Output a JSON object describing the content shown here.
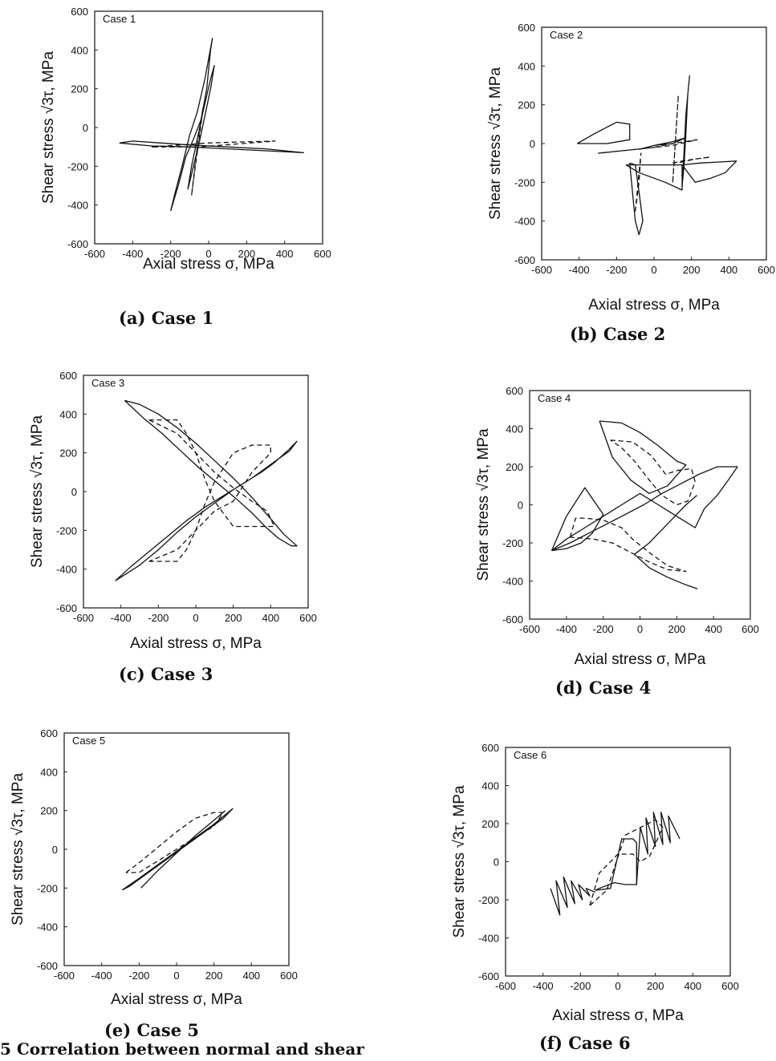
{
  "figure_caption": "5 Correlation between normal and shear",
  "chart_data": [
    {
      "type": "line",
      "panel_label": "(a) Case 1",
      "case_label": "Case 1",
      "xlabel": "Axial stress  σ,  MPa",
      "ylabel": "Shear stress  √3τ,  MPa",
      "xlim": [
        -600,
        600
      ],
      "ylim": [
        -600,
        600
      ],
      "xticks": [
        "-600",
        "-400",
        "-200",
        "0",
        "200",
        "400",
        "600"
      ],
      "yticks": [
        "-600",
        "-400",
        "-200",
        "0",
        "200",
        "400",
        "600"
      ],
      "series": [
        {
          "style": "solid",
          "x": [
            -200,
            -160,
            -120,
            -80,
            -40,
            -10,
            10,
            20,
            -20,
            -60,
            -100,
            -140,
            -180,
            -200
          ],
          "y": [
            -430,
            -300,
            -150,
            -60,
            40,
            200,
            400,
            460,
            250,
            80,
            -40,
            -200,
            -350,
            -430
          ]
        },
        {
          "style": "solid",
          "x": [
            -110,
            -80,
            -50,
            -20,
            10,
            30,
            10,
            -30,
            -60,
            -90,
            -110
          ],
          "y": [
            -320,
            -200,
            -80,
            60,
            200,
            320,
            250,
            80,
            -60,
            -200,
            -320
          ]
        },
        {
          "style": "solid",
          "x": [
            -470,
            -400,
            -250,
            -100,
            100,
            300,
            500,
            300,
            100,
            -100,
            -300,
            -470
          ],
          "y": [
            -80,
            -70,
            -80,
            -90,
            -100,
            -110,
            -130,
            -120,
            -110,
            -100,
            -95,
            -80
          ]
        },
        {
          "style": "dashed",
          "x": [
            -90,
            -70,
            -50,
            -30,
            -60,
            -90
          ],
          "y": [
            -350,
            -200,
            -60,
            100,
            -100,
            -350
          ]
        },
        {
          "style": "dashed",
          "x": [
            -300,
            -150,
            0,
            150,
            350,
            150,
            -50,
            -300
          ],
          "y": [
            -100,
            -90,
            -80,
            -75,
            -70,
            -85,
            -100,
            -100
          ]
        }
      ]
    },
    {
      "type": "line",
      "panel_label": "(b) Case 2",
      "case_label": "Case 2",
      "xlabel": "Axial stress  σ,  MPa",
      "ylabel": "Shear stress  √3τ,  MPa",
      "xlim": [
        -600,
        600
      ],
      "ylim": [
        -600,
        600
      ],
      "xticks": [
        "-600",
        "-400",
        "-200",
        "0",
        "200",
        "400",
        "600"
      ],
      "yticks": [
        "-600",
        "-400",
        "-200",
        "0",
        "200",
        "400",
        "600"
      ],
      "series": [
        {
          "style": "solid",
          "x": [
            -410,
            -320,
            -200,
            -130,
            -130,
            -250,
            -410
          ],
          "y": [
            0,
            50,
            110,
            100,
            20,
            0,
            0
          ]
        },
        {
          "style": "solid",
          "x": [
            -130,
            -120,
            -110,
            -100,
            -80,
            -60,
            -80,
            -100,
            -130
          ],
          "y": [
            -100,
            -200,
            -300,
            -400,
            -470,
            -400,
            -250,
            -110,
            -100
          ]
        },
        {
          "style": "solid",
          "x": [
            -150,
            -20,
            150,
            150,
            60,
            -80,
            -150
          ],
          "y": [
            -110,
            -110,
            -110,
            -240,
            -200,
            -150,
            -110
          ]
        },
        {
          "style": "solid",
          "x": [
            150,
            160,
            170,
            190,
            180,
            170,
            160,
            150
          ],
          "y": [
            -220,
            -50,
            150,
            350,
            250,
            50,
            -120,
            -220
          ]
        },
        {
          "style": "solid",
          "x": [
            150,
            250,
            350,
            440,
            380,
            300,
            220,
            150
          ],
          "y": [
            -110,
            -100,
            -95,
            -90,
            -150,
            -180,
            -200,
            -110
          ]
        },
        {
          "style": "solid",
          "x": [
            -80,
            0,
            100,
            170,
            100,
            0,
            -80
          ],
          "y": [
            -30,
            -10,
            10,
            30,
            0,
            -10,
            -30
          ]
        },
        {
          "style": "dashed",
          "x": [
            -300,
            -200,
            -100,
            0,
            100,
            230,
            100,
            0,
            -100,
            -300
          ],
          "y": [
            -50,
            -40,
            -30,
            -20,
            0,
            20,
            -10,
            -20,
            -30,
            -50
          ]
        },
        {
          "style": "dashed",
          "x": [
            100,
            150,
            220,
            300,
            220,
            150,
            100
          ],
          "y": [
            -100,
            -90,
            -80,
            -70,
            -80,
            -95,
            -100
          ]
        },
        {
          "style": "dashed",
          "x": [
            100,
            110,
            120,
            130,
            120,
            110,
            100
          ],
          "y": [
            -200,
            -50,
            100,
            250,
            100,
            -50,
            -200
          ]
        },
        {
          "style": "dashed",
          "x": [
            -100,
            -90,
            -80,
            -70,
            -80,
            -100
          ],
          "y": [
            -350,
            -250,
            -150,
            -50,
            -200,
            -350
          ]
        }
      ]
    },
    {
      "type": "line",
      "panel_label": "(c) Case 3",
      "case_label": "Case 3",
      "xlabel": "Axial stress  σ,  MPa",
      "ylabel": "Shear stress  √3τ,  MPa",
      "xlim": [
        -600,
        600
      ],
      "ylim": [
        -600,
        600
      ],
      "xticks": [
        "-600",
        "-400",
        "-200",
        "0",
        "200",
        "400",
        "600"
      ],
      "yticks": [
        "-600",
        "-400",
        "-200",
        "0",
        "200",
        "400",
        "600"
      ],
      "series": [
        {
          "style": "solid",
          "x": [
            -430,
            -300,
            -200,
            -100,
            0,
            100,
            200,
            300,
            400,
            500,
            540,
            500,
            420,
            350,
            250,
            150,
            50,
            -50,
            -150,
            -250,
            -350,
            -430
          ],
          "y": [
            -460,
            -380,
            -300,
            -210,
            -130,
            -60,
            10,
            70,
            140,
            210,
            260,
            220,
            150,
            100,
            40,
            -20,
            -80,
            -150,
            -230,
            -310,
            -390,
            -460
          ]
        },
        {
          "style": "solid",
          "x": [
            -380,
            -300,
            -200,
            -100,
            0,
            100,
            200,
            300,
            400,
            470,
            540,
            510,
            440,
            370,
            300,
            220,
            120,
            20,
            -80,
            -180,
            -280,
            -380
          ],
          "y": [
            470,
            450,
            400,
            330,
            250,
            160,
            70,
            -30,
            -140,
            -220,
            -280,
            -280,
            -240,
            -180,
            -110,
            -40,
            40,
            120,
            210,
            300,
            380,
            470
          ]
        },
        {
          "style": "dashed",
          "x": [
            -250,
            -100,
            -50,
            0,
            50,
            100,
            200,
            300,
            400,
            400,
            300,
            200,
            100,
            0,
            -100,
            -250
          ],
          "y": [
            -360,
            -360,
            -300,
            -200,
            -60,
            50,
            200,
            240,
            240,
            200,
            100,
            -50,
            -100,
            -200,
            -300,
            -360
          ]
        },
        {
          "style": "dashed",
          "x": [
            -250,
            -100,
            -50,
            0,
            50,
            100,
            200,
            300,
            420,
            380,
            300,
            200,
            100,
            0,
            -100,
            -250
          ],
          "y": [
            370,
            370,
            300,
            200,
            60,
            -50,
            -180,
            -180,
            -180,
            -100,
            -50,
            20,
            100,
            200,
            300,
            370
          ]
        }
      ]
    },
    {
      "type": "line",
      "panel_label": "(d) Case 4",
      "case_label": "Case 4",
      "xlabel": "Axial stress  σ,  MPa",
      "ylabel": "Shear stress  √3τ,  MPa",
      "xlim": [
        -600,
        600
      ],
      "ylim": [
        -600,
        600
      ],
      "xticks": [
        "-600",
        "-400",
        "-200",
        "0",
        "200",
        "400",
        "600"
      ],
      "yticks": [
        "-600",
        "-400",
        "-200",
        "0",
        "200",
        "400",
        "600"
      ],
      "series": [
        {
          "style": "solid",
          "x": [
            -480,
            -380,
            -280,
            -180,
            -80,
            20,
            120,
            220,
            320,
            420,
            530,
            480,
            420,
            350,
            300,
            200,
            100,
            0,
            -100,
            -200,
            -300,
            -400,
            -480
          ],
          "y": [
            -240,
            -200,
            -150,
            -100,
            -50,
            0,
            60,
            110,
            160,
            200,
            200,
            130,
            50,
            -20,
            -120,
            -60,
            0,
            60,
            0,
            -60,
            -120,
            -180,
            -240
          ]
        },
        {
          "style": "solid",
          "x": [
            -480,
            -400,
            -300,
            -200,
            -260,
            -320,
            -400,
            -480
          ],
          "y": [
            -240,
            -60,
            90,
            -50,
            -150,
            -200,
            -230,
            -240
          ]
        },
        {
          "style": "solid",
          "x": [
            -220,
            -100,
            0,
            100,
            200,
            250,
            150,
            50,
            -50,
            -150,
            -220
          ],
          "y": [
            440,
            430,
            380,
            310,
            230,
            210,
            100,
            60,
            130,
            250,
            440
          ]
        },
        {
          "style": "solid",
          "x": [
            -30,
            50,
            150,
            250,
            310,
            250,
            150,
            50,
            -30
          ],
          "y": [
            -260,
            -330,
            -380,
            -420,
            -440,
            -420,
            -380,
            -330,
            -260
          ]
        },
        {
          "style": "solid",
          "x": [
            -30,
            50,
            100,
            150,
            200,
            250,
            310
          ],
          "y": [
            -260,
            -200,
            -150,
            -100,
            -50,
            0,
            50
          ]
        },
        {
          "style": "dashed",
          "x": [
            -160,
            -40,
            60,
            140,
            200,
            280,
            300,
            260,
            200,
            120,
            50,
            -30,
            -100,
            -160
          ],
          "y": [
            340,
            330,
            260,
            160,
            180,
            190,
            120,
            20,
            0,
            50,
            130,
            230,
            300,
            340
          ]
        },
        {
          "style": "dashed",
          "x": [
            -380,
            -350,
            -300,
            -200,
            -100,
            -40,
            50,
            150,
            250,
            150,
            50,
            -50,
            -150,
            -250,
            -380
          ],
          "y": [
            -170,
            -70,
            -70,
            -80,
            -120,
            -180,
            -250,
            -320,
            -350,
            -340,
            -300,
            -250,
            -200,
            -180,
            -170
          ]
        }
      ]
    },
    {
      "type": "line",
      "panel_label": "(e) Case 5",
      "case_label": "Case 5",
      "xlabel": "Axial stress  σ,  MPa",
      "ylabel": "Shear stress  √3τ,  MPa",
      "xlim": [
        -600,
        600
      ],
      "ylim": [
        -600,
        600
      ],
      "xticks": [
        "-600",
        "-400",
        "-200",
        "0",
        "200",
        "400",
        "600"
      ],
      "yticks": [
        "-600",
        "-400",
        "-200",
        "0",
        "200",
        "400",
        "600"
      ],
      "series": [
        {
          "style": "solid",
          "x": [
            -290,
            -200,
            -100,
            0,
            100,
            200,
            300,
            250,
            150,
            50,
            -50,
            -150,
            -250,
            -290
          ],
          "y": [
            -210,
            -150,
            -80,
            -10,
            60,
            130,
            210,
            160,
            90,
            20,
            -50,
            -120,
            -190,
            -210
          ]
        },
        {
          "style": "solid",
          "x": [
            -190,
            -100,
            0,
            100,
            200,
            260
          ],
          "y": [
            -200,
            -110,
            -20,
            70,
            150,
            200
          ]
        },
        {
          "style": "dashed",
          "x": [
            -270,
            -200,
            -100,
            0,
            100,
            200,
            250,
            200,
            100,
            0,
            -100,
            -200,
            -270
          ],
          "y": [
            -120,
            -70,
            10,
            90,
            160,
            190,
            190,
            120,
            60,
            0,
            -60,
            -120,
            -120
          ]
        }
      ]
    },
    {
      "type": "line",
      "panel_label": "(f) Case 6",
      "case_label": "Case 6",
      "xlabel": "Axial stress  σ,  MPa",
      "ylabel": "Shear stress  √3τ,  MPa",
      "xlim": [
        -600,
        600
      ],
      "ylim": [
        -600,
        600
      ],
      "xticks": [
        "-600",
        "-400",
        "-200",
        "0",
        "200",
        "400",
        "600"
      ],
      "yticks": [
        "-600",
        "-400",
        "-200",
        "0",
        "200",
        "400",
        "600"
      ],
      "series": [
        {
          "style": "solid",
          "x": [
            -360,
            -310,
            -330,
            -270,
            -290,
            -230,
            -250,
            -190,
            -210,
            -150,
            -170,
            -120
          ],
          "y": [
            -140,
            -280,
            -100,
            -240,
            -80,
            -220,
            -100,
            -200,
            -120,
            -180,
            -140,
            -160
          ]
        },
        {
          "style": "solid",
          "x": [
            -120,
            -40,
            20,
            80,
            100,
            100,
            40,
            -20,
            -100,
            -120
          ],
          "y": [
            -150,
            -140,
            120,
            120,
            100,
            -120,
            -120,
            -110,
            -140,
            -150
          ]
        },
        {
          "style": "solid",
          "x": [
            100,
            120,
            160,
            150,
            200,
            190,
            240,
            230,
            280,
            270,
            330
          ],
          "y": [
            -120,
            180,
            40,
            230,
            80,
            260,
            90,
            260,
            100,
            240,
            120
          ]
        },
        {
          "style": "dashed",
          "x": [
            -150,
            -100,
            0,
            80,
            120,
            170,
            240,
            200,
            120,
            40,
            -60,
            -150
          ],
          "y": [
            -230,
            -60,
            40,
            40,
            0,
            30,
            180,
            220,
            180,
            140,
            -150,
            -230
          ]
        }
      ]
    }
  ]
}
